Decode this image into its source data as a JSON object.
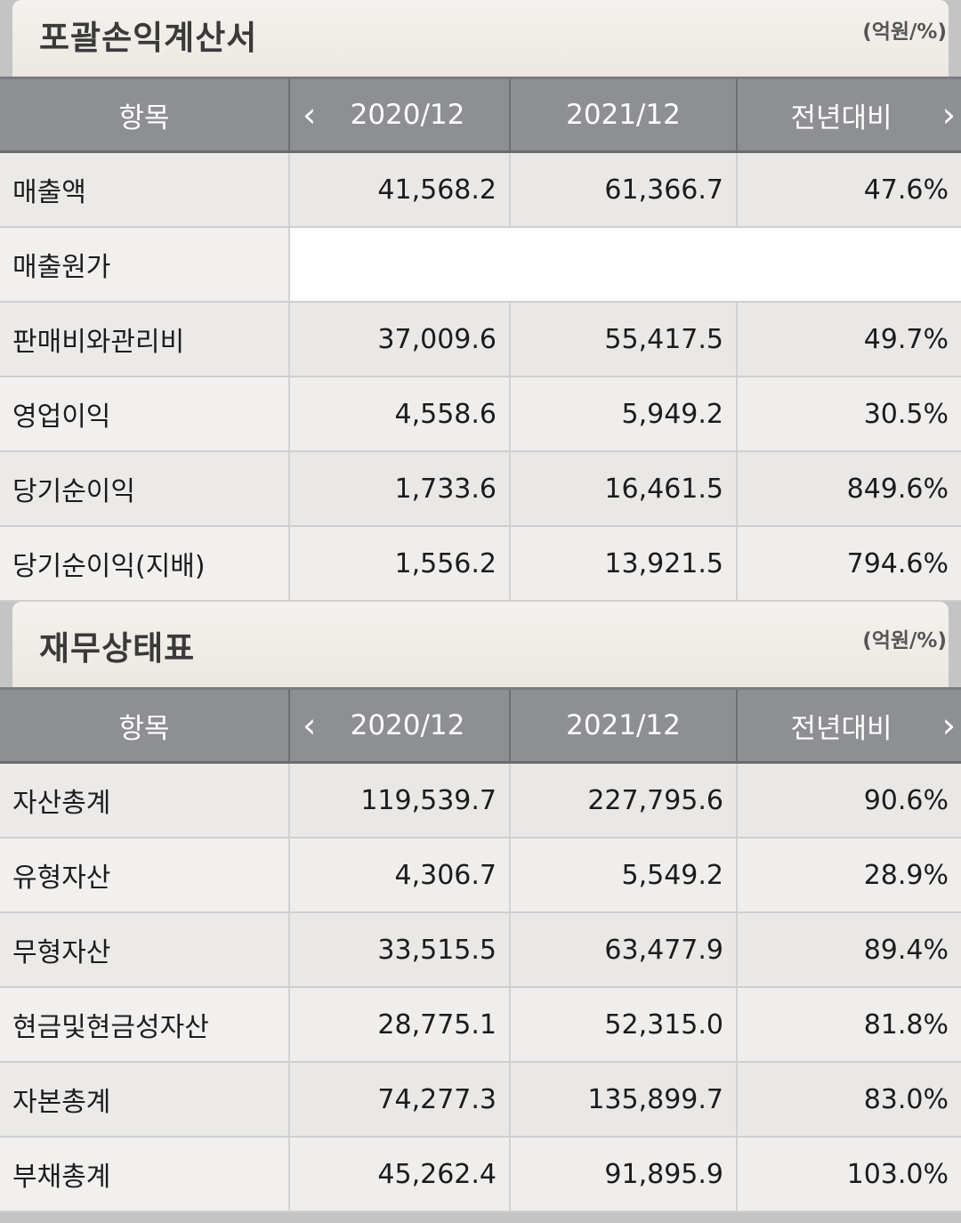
{
  "income_statement": {
    "title": "포괄손익계산서",
    "unit": "(억원/%)",
    "header": {
      "item": "항목",
      "prev_arrow": "‹",
      "col1": "2020/12",
      "col2": "2021/12",
      "col3": "전년대비",
      "next_arrow": "›"
    },
    "rows": [
      {
        "label": "매출액",
        "v2020": "41,568.2",
        "v2021": "61,366.7",
        "yoy": "47.6%"
      },
      {
        "label": "매출원가",
        "v2020": "",
        "v2021": "",
        "yoy": ""
      },
      {
        "label": "판매비와관리비",
        "v2020": "37,009.6",
        "v2021": "55,417.5",
        "yoy": "49.7%"
      },
      {
        "label": "영업이익",
        "v2020": "4,558.6",
        "v2021": "5,949.2",
        "yoy": "30.5%"
      },
      {
        "label": "당기순이익",
        "v2020": "1,733.6",
        "v2021": "16,461.5",
        "yoy": "849.6%"
      },
      {
        "label": "당기순이익(지배)",
        "v2020": "1,556.2",
        "v2021": "13,921.5",
        "yoy": "794.6%"
      }
    ]
  },
  "balance_sheet": {
    "title": "재무상태표",
    "unit": "(억원/%)",
    "header": {
      "item": "항목",
      "prev_arrow": "‹",
      "col1": "2020/12",
      "col2": "2021/12",
      "col3": "전년대비",
      "next_arrow": "›"
    },
    "rows": [
      {
        "label": "자산총계",
        "v2020": "119,539.7",
        "v2021": "227,795.6",
        "yoy": "90.6%"
      },
      {
        "label": "유형자산",
        "v2020": "4,306.7",
        "v2021": "5,549.2",
        "yoy": "28.9%"
      },
      {
        "label": "무형자산",
        "v2020": "33,515.5",
        "v2021": "63,477.9",
        "yoy": "89.4%"
      },
      {
        "label": "현금및현금성자산",
        "v2020": "28,775.1",
        "v2021": "52,315.0",
        "yoy": "81.8%"
      },
      {
        "label": "자본총계",
        "v2020": "74,277.3",
        "v2021": "135,899.7",
        "yoy": "83.0%"
      },
      {
        "label": "부채총계",
        "v2020": "45,262.4",
        "v2021": "91,895.9",
        "yoy": "103.0%"
      }
    ]
  }
}
